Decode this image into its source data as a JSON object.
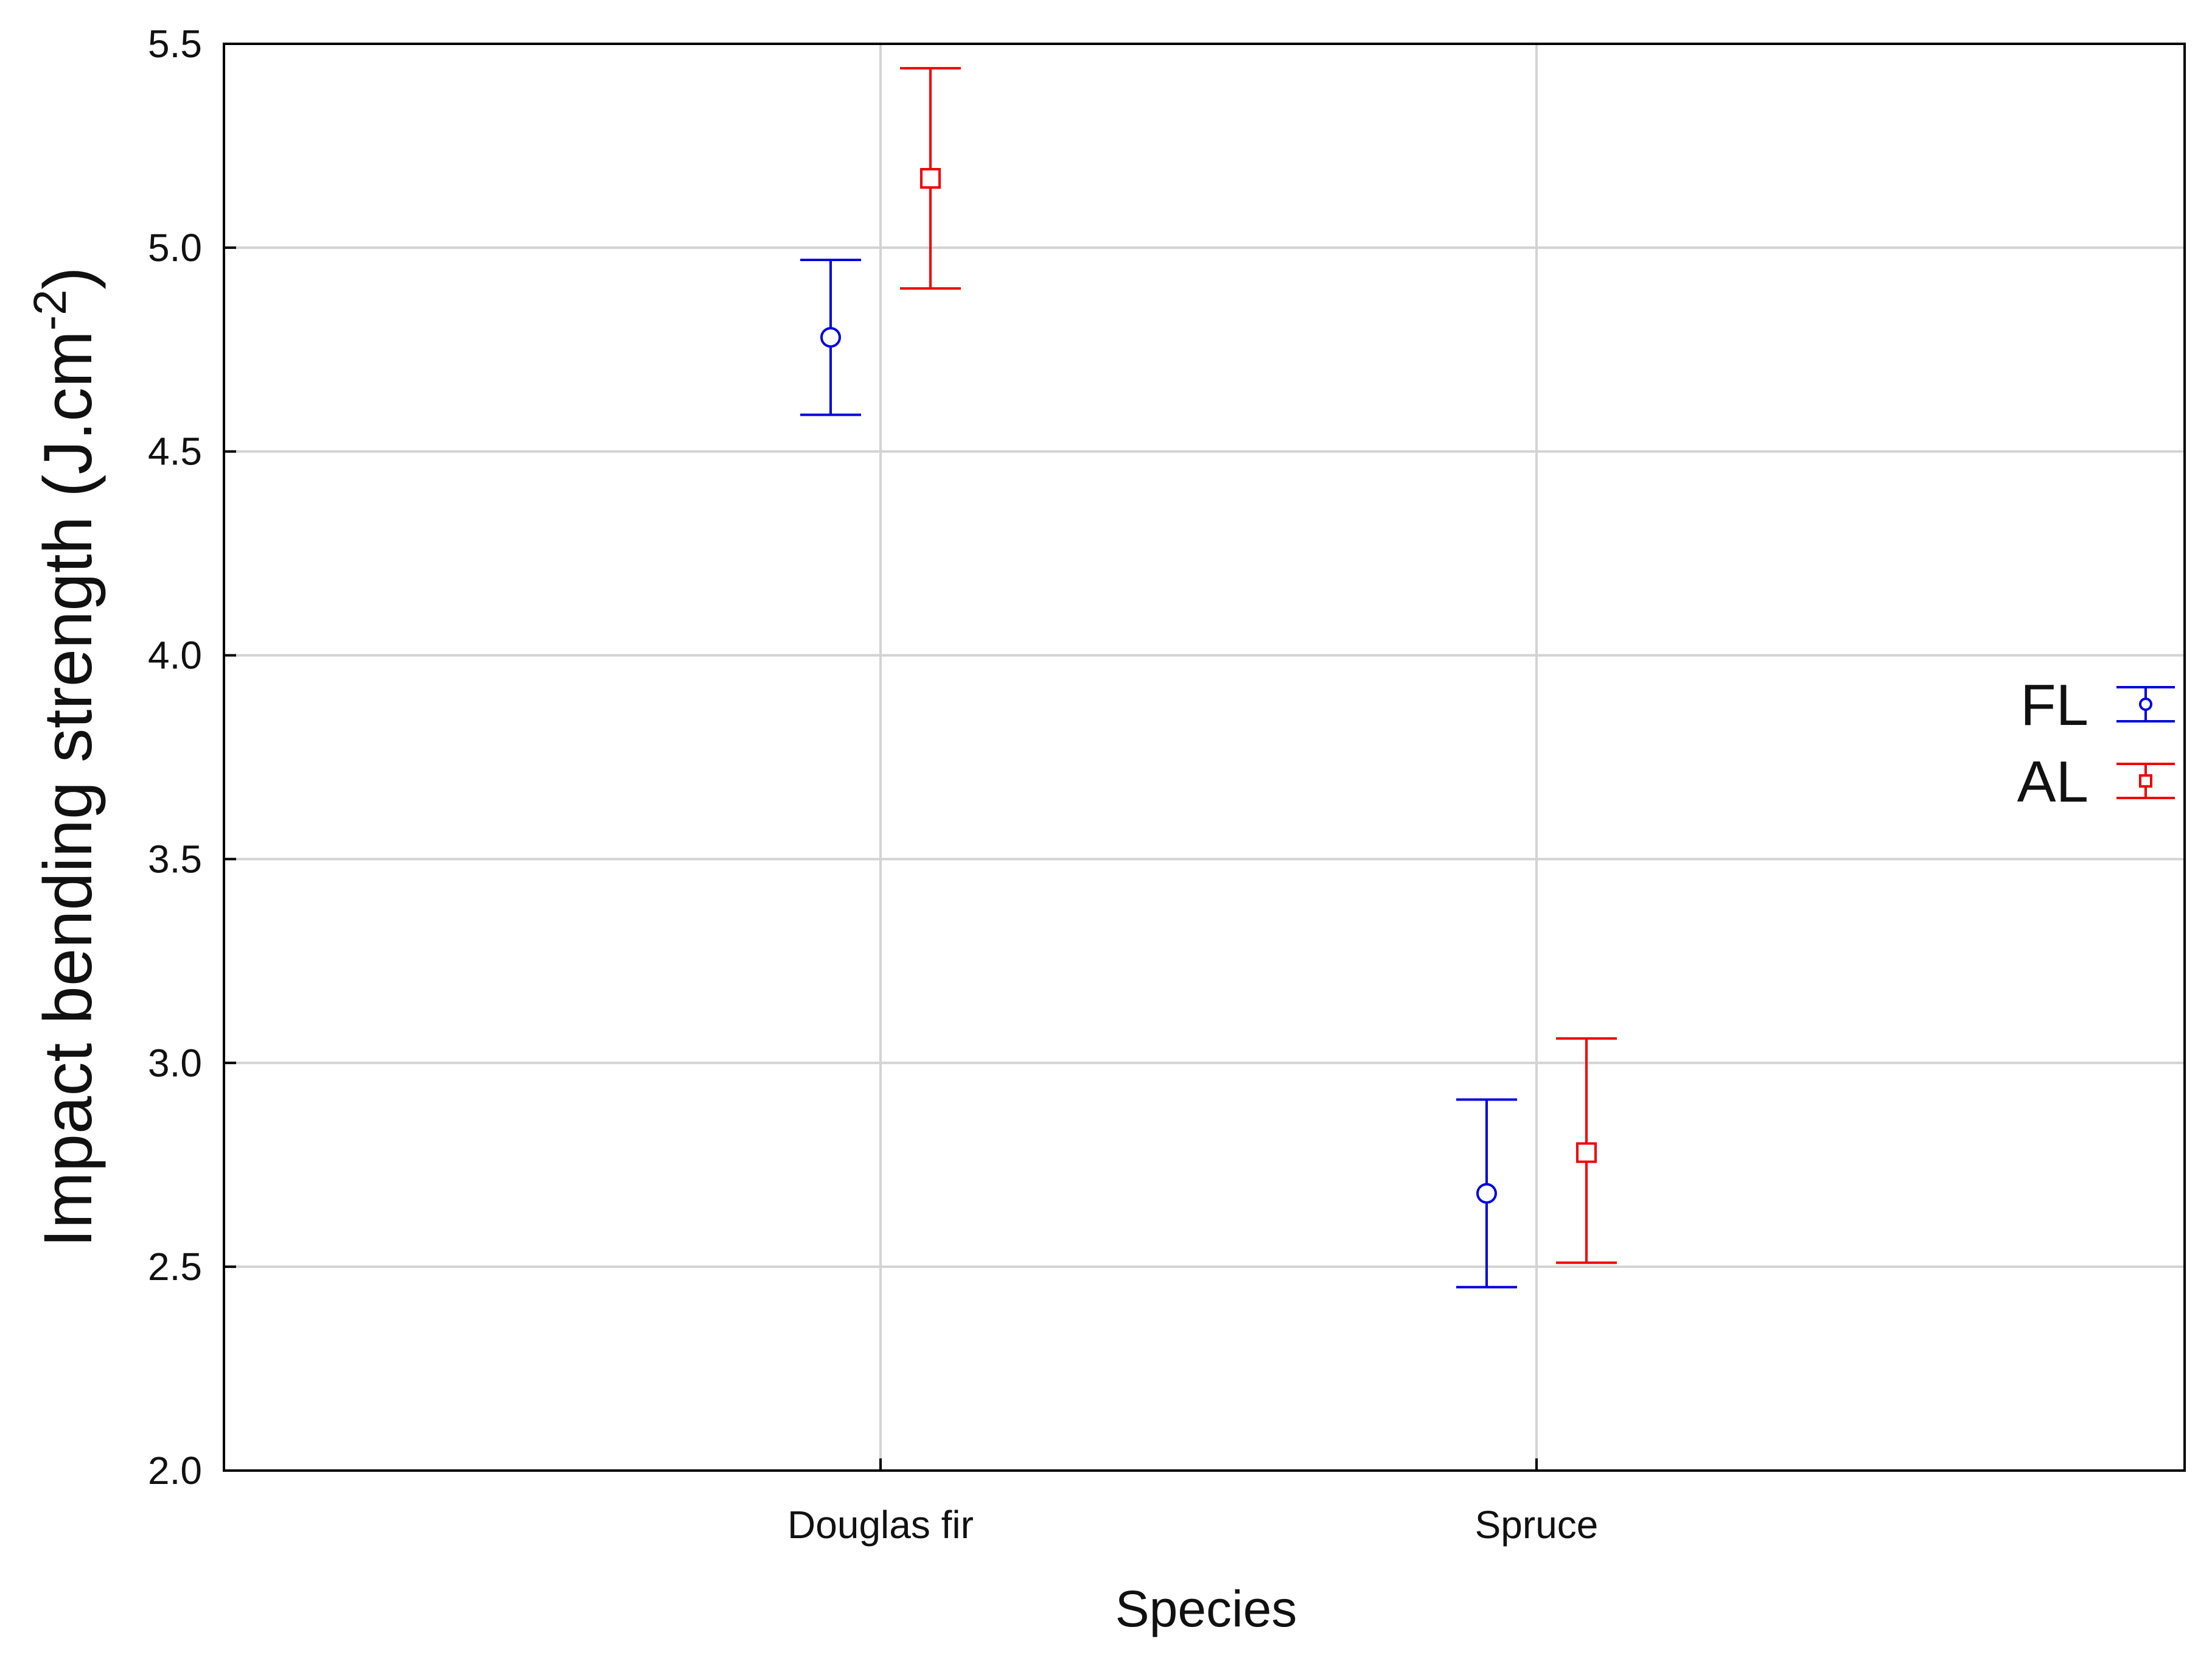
{
  "chart_data": {
    "type": "scatter",
    "title": "",
    "xlabel": "Species",
    "ylabel_main": "Impact bending strength (J.cm",
    "ylabel_sup": "-2",
    "ylabel_close": ")",
    "categories": [
      "Douglas fir",
      "Spruce"
    ],
    "ylim": [
      2.0,
      5.5
    ],
    "yticks": [
      "2.0",
      "2.5",
      "3.0",
      "3.5",
      "4.0",
      "4.5",
      "5.0",
      "5.5"
    ],
    "grid": true,
    "legend_position": "right",
    "series": [
      {
        "name": "FL",
        "color": "#0000dd",
        "marker": "circle",
        "values": [
          4.78,
          2.68
        ],
        "upper": [
          4.97,
          2.91
        ],
        "lower": [
          4.59,
          2.45
        ]
      },
      {
        "name": "AL",
        "color": "#ee0000",
        "marker": "square",
        "values": [
          5.17,
          2.78
        ],
        "upper": [
          5.44,
          3.06
        ],
        "lower": [
          4.9,
          2.51
        ]
      }
    ]
  }
}
